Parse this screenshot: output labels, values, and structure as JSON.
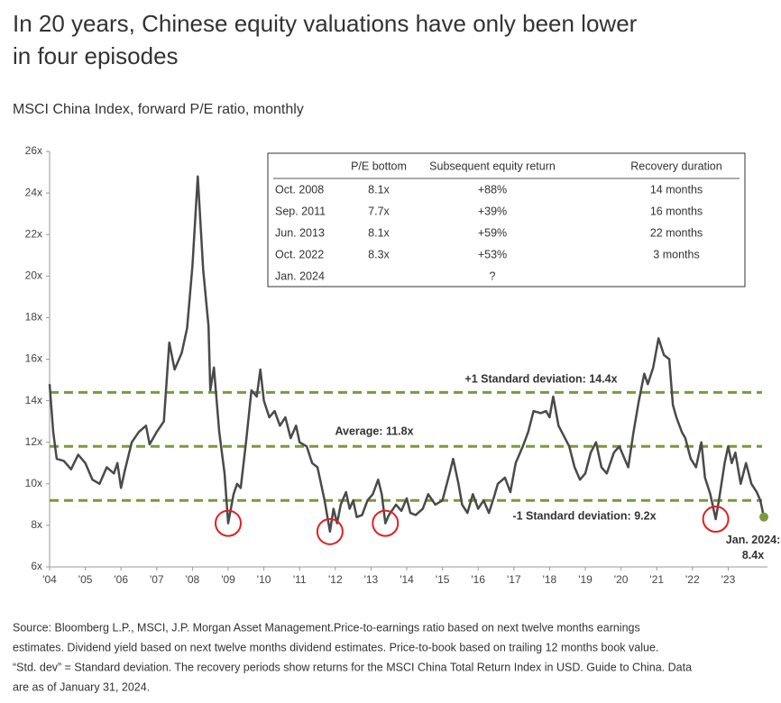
{
  "chart_data": {
    "type": "line",
    "title": [
      "In 20 years, Chinese equity valuations have only been lower",
      "in four episodes"
    ],
    "subtitle": "MSCI China Index, forward P/E ratio, monthly",
    "series": [
      {
        "name": "MSCI China forward P/E",
        "color": "#4a4a4a",
        "x": [
          2004.0,
          2004.1,
          2004.2,
          2004.4,
          2004.6,
          2004.8,
          2005.0,
          2005.2,
          2005.4,
          2005.6,
          2005.8,
          2005.9,
          2006.0,
          2006.1,
          2006.3,
          2006.5,
          2006.7,
          2006.8,
          2007.0,
          2007.2,
          2007.35,
          2007.5,
          2007.7,
          2007.85,
          2008.0,
          2008.15,
          2008.3,
          2008.45,
          2008.5,
          2008.6,
          2008.75,
          2008.9,
          2009.0,
          2009.15,
          2009.25,
          2009.35,
          2009.5,
          2009.65,
          2009.8,
          2009.9,
          2010.0,
          2010.15,
          2010.3,
          2010.45,
          2010.6,
          2010.75,
          2010.9,
          2011.0,
          2011.2,
          2011.35,
          2011.5,
          2011.6,
          2011.7,
          2011.85,
          2011.95,
          2012.05,
          2012.15,
          2012.3,
          2012.4,
          2012.5,
          2012.6,
          2012.75,
          2012.9,
          2013.05,
          2013.2,
          2013.3,
          2013.4,
          2013.5,
          2013.7,
          2013.85,
          2014.0,
          2014.1,
          2014.25,
          2014.45,
          2014.6,
          2014.8,
          2015.0,
          2015.2,
          2015.3,
          2015.45,
          2015.55,
          2015.7,
          2015.85,
          2016.0,
          2016.15,
          2016.3,
          2016.45,
          2016.55,
          2016.75,
          2016.9,
          2017.05,
          2017.25,
          2017.4,
          2017.55,
          2017.75,
          2017.9,
          2018.0,
          2018.1,
          2018.25,
          2018.4,
          2018.55,
          2018.7,
          2018.85,
          2019.0,
          2019.15,
          2019.3,
          2019.45,
          2019.6,
          2019.8,
          2019.95,
          2020.1,
          2020.2,
          2020.35,
          2020.5,
          2020.65,
          2020.75,
          2020.9,
          2021.05,
          2021.2,
          2021.35,
          2021.45,
          2021.55,
          2021.7,
          2021.8,
          2021.95,
          2022.1,
          2022.25,
          2022.35,
          2022.5,
          2022.65,
          2022.75,
          2022.9,
          2023.0,
          2023.1,
          2023.2,
          2023.35,
          2023.5,
          2023.65,
          2023.8,
          2023.9,
          2024.0
        ],
        "values": [
          14.8,
          12.5,
          11.2,
          11.1,
          10.7,
          11.4,
          11,
          10.2,
          10,
          10.8,
          10.5,
          11,
          9.8,
          10.6,
          12,
          12.5,
          12.8,
          11.9,
          12.5,
          13,
          16.8,
          15.5,
          16.3,
          17.5,
          20.5,
          24.8,
          20.3,
          17.6,
          14.5,
          15.6,
          12.5,
          10.5,
          8.1,
          9.5,
          10,
          9.8,
          12,
          14.5,
          14.2,
          15.5,
          14,
          13.2,
          13.5,
          12.8,
          13.2,
          12.2,
          12.8,
          12,
          11.8,
          11,
          10.8,
          10,
          9.2,
          7.7,
          8.8,
          8.1,
          9,
          9.6,
          8.8,
          9.2,
          8.4,
          8.5,
          9.2,
          9.5,
          10.2,
          9.5,
          8.1,
          8.5,
          9,
          8.7,
          9.3,
          8.6,
          8.5,
          8.8,
          9.5,
          9,
          9.2,
          10.5,
          11.2,
          10,
          9,
          8.6,
          9.5,
          8.8,
          9.2,
          8.6,
          9.4,
          10,
          10.3,
          9.6,
          11,
          11.8,
          12.5,
          13.5,
          13.4,
          13.5,
          13.2,
          14.2,
          12.8,
          12.3,
          11.8,
          10.8,
          10.2,
          10.5,
          11.5,
          12,
          10.8,
          10.5,
          11.5,
          11.8,
          11.2,
          10.8,
          12.5,
          14,
          15.3,
          14.8,
          15.6,
          17,
          16.2,
          16,
          13.8,
          13.2,
          12.5,
          12.2,
          11.2,
          10.8,
          12,
          10.3,
          9.5,
          8.3,
          9.3,
          11,
          11.8,
          11,
          11.5,
          10,
          11,
          10,
          9.6,
          9.2,
          8.4
        ]
      }
    ],
    "end_marker_color": "#7a9a3a",
    "xlim": [
      2004,
      2024.1
    ],
    "xticks": [
      {
        "value": 2004,
        "label": "'04"
      },
      {
        "value": 2005,
        "label": "'05"
      },
      {
        "value": 2006,
        "label": "'06"
      },
      {
        "value": 2007,
        "label": "'07"
      },
      {
        "value": 2008,
        "label": "'08"
      },
      {
        "value": 2009,
        "label": "'09"
      },
      {
        "value": 2010,
        "label": "'10"
      },
      {
        "value": 2011,
        "label": "'11"
      },
      {
        "value": 2012,
        "label": "'12"
      },
      {
        "value": 2013,
        "label": "'13"
      },
      {
        "value": 2014,
        "label": "'14"
      },
      {
        "value": 2015,
        "label": "'15"
      },
      {
        "value": 2016,
        "label": "'16"
      },
      {
        "value": 2017,
        "label": "'17"
      },
      {
        "value": 2018,
        "label": "'18"
      },
      {
        "value": 2019,
        "label": "'19"
      },
      {
        "value": 2020,
        "label": "'20"
      },
      {
        "value": 2021,
        "label": "'21"
      },
      {
        "value": 2022,
        "label": "'22"
      },
      {
        "value": 2023,
        "label": "'23"
      }
    ],
    "ylim": [
      6,
      26
    ],
    "yticks": [
      {
        "value": 6,
        "label": "6x"
      },
      {
        "value": 8,
        "label": "8x"
      },
      {
        "value": 10,
        "label": "10x"
      },
      {
        "value": 12,
        "label": "12x"
      },
      {
        "value": 14,
        "label": "14x"
      },
      {
        "value": 16,
        "label": "16x"
      },
      {
        "value": 18,
        "label": "18x"
      },
      {
        "value": 20,
        "label": "20x"
      },
      {
        "value": 22,
        "label": "22x"
      },
      {
        "value": 24,
        "label": "24x"
      },
      {
        "value": 26,
        "label": "26x"
      }
    ],
    "reference_lines": [
      {
        "label": "+1 Standard deviation: 14.4x",
        "value": 14.4
      },
      {
        "label": "Average: 11.8x",
        "value": 11.8
      },
      {
        "label": "-1 Standard deviation: 9.2x",
        "value": 9.2
      }
    ],
    "reference_color": "#7a9a3a",
    "highlights": [
      {
        "x": 2009.0,
        "y": 8.1
      },
      {
        "x": 2011.85,
        "y": 7.7
      },
      {
        "x": 2013.4,
        "y": 8.1
      },
      {
        "x": 2022.65,
        "y": 8.3
      }
    ],
    "highlight_color": "#e02020",
    "annotation": [
      "Jan. 2024:",
      "8.4x"
    ],
    "table": {
      "columns": [
        "P/E bottom",
        "Subsequent equity return",
        "Recovery duration"
      ],
      "rows": [
        [
          "Oct. 2008",
          "8.1x",
          "+88%",
          "14 months"
        ],
        [
          "Sep. 2011",
          "7.7x",
          "+39%",
          "16 months"
        ],
        [
          "Jun. 2013",
          "8.1x",
          "+59%",
          "22 months"
        ],
        [
          "Oct. 2022",
          "8.3x",
          "+53%",
          "3 months"
        ],
        [
          "Jan. 2024",
          "",
          "?",
          ""
        ]
      ]
    }
  },
  "source": [
    "Source: Bloomberg L.P., MSCI, J.P. Morgan Asset Management.Price-to-earnings ratio based on next twelve months earnings",
    "estimates. Dividend yield based on next twelve months dividend estimates. Price-to-book based on trailing 12 months book value.",
    "“Std. dev” = Standard deviation. The recovery periods show returns for the MSCI China Total Return Index in USD. Guide to China. Data",
    "are as of January 31, 2024."
  ]
}
